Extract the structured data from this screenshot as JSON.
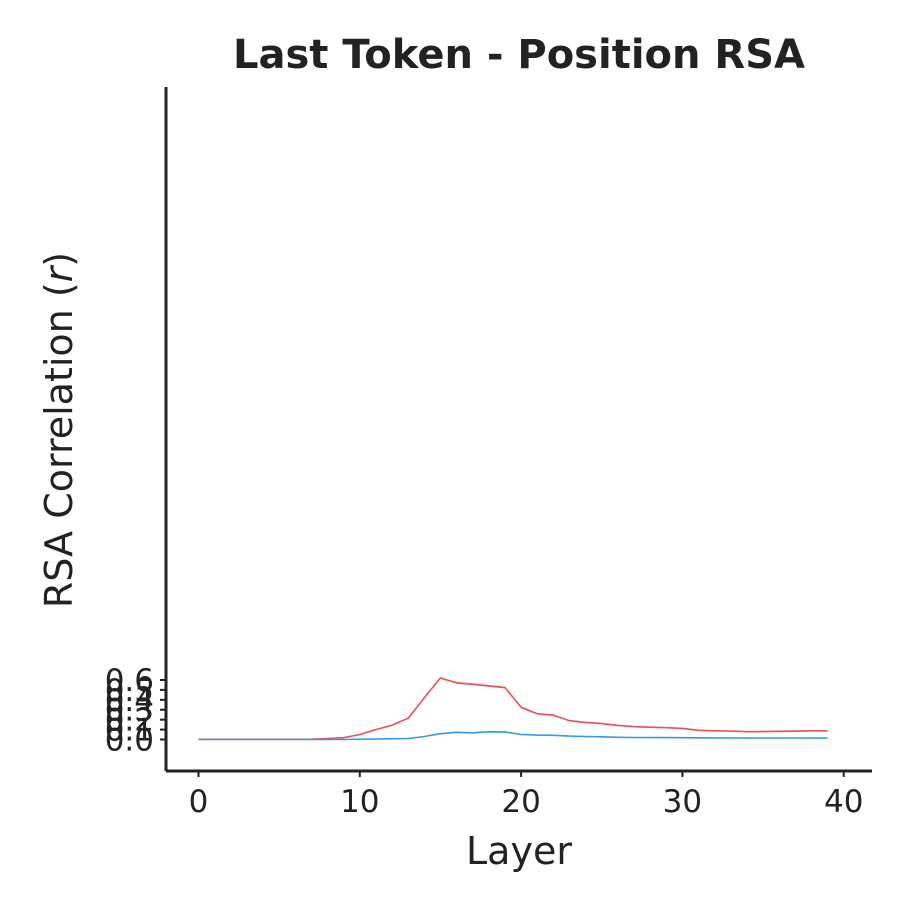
{
  "chart_data": {
    "type": "line",
    "title": "Last Token - Position RSA",
    "xlabel": "Layer",
    "ylabel_main": "RSA Correlation (",
    "ylabel_var": "r",
    "ylabel_end": ")",
    "xlim": [
      -2,
      41
    ],
    "ylim": [
      -0.03,
      0.66
    ],
    "x_ticks": [
      0,
      10,
      20,
      30,
      40
    ],
    "x_tick_labels": [
      "0",
      "10",
      "20",
      "30",
      "40"
    ],
    "y_ticks": [
      0.0,
      0.1,
      0.2,
      0.3,
      0.4,
      0.5,
      0.6
    ],
    "y_tick_labels": [
      "0.0",
      "0.1",
      "0.2",
      "0.3",
      "0.4",
      "0.5",
      "0.6"
    ],
    "grid": false,
    "legend": "none",
    "series": [
      {
        "color": "#e8505b",
        "band_color": "#f4b6bb",
        "x": [
          0,
          1,
          2,
          3,
          4,
          5,
          6,
          7,
          8,
          9,
          10,
          11,
          12,
          13,
          14,
          15,
          16,
          17,
          18,
          19,
          20,
          21,
          22,
          23,
          24,
          25,
          26,
          27,
          28,
          29,
          30,
          31,
          32,
          33,
          34,
          35,
          36,
          37,
          38,
          39
        ],
        "y": [
          0.002,
          0.002,
          0.002,
          0.002,
          0.002,
          0.002,
          0.002,
          0.003,
          0.01,
          0.018,
          0.05,
          0.1,
          0.145,
          0.215,
          0.42,
          0.62,
          0.572,
          0.557,
          0.54,
          0.523,
          0.325,
          0.26,
          0.245,
          0.19,
          0.172,
          0.16,
          0.142,
          0.13,
          0.124,
          0.119,
          0.112,
          0.093,
          0.088,
          0.086,
          0.079,
          0.08,
          0.083,
          0.085,
          0.088,
          0.088
        ],
        "err": [
          0.003,
          0.003,
          0.003,
          0.003,
          0.003,
          0.003,
          0.003,
          0.004,
          0.005,
          0.006,
          0.006,
          0.007,
          0.007,
          0.007,
          0.008,
          0.01,
          0.01,
          0.01,
          0.01,
          0.01,
          0.009,
          0.008,
          0.008,
          0.007,
          0.007,
          0.007,
          0.007,
          0.007,
          0.007,
          0.007,
          0.007,
          0.007,
          0.007,
          0.007,
          0.007,
          0.007,
          0.007,
          0.007,
          0.007,
          0.007
        ]
      },
      {
        "color": "#3399ee",
        "band_color": "#b3d9f5",
        "x": [
          0,
          1,
          2,
          3,
          4,
          5,
          6,
          7,
          8,
          9,
          10,
          11,
          12,
          13,
          14,
          15,
          16,
          17,
          18,
          19,
          20,
          21,
          22,
          23,
          24,
          25,
          26,
          27,
          28,
          29,
          30,
          31,
          32,
          33,
          34,
          35,
          36,
          37,
          38,
          39
        ],
        "y": [
          0.0,
          0.0,
          0.0,
          0.0,
          0.0,
          0.0,
          0.0,
          0.0,
          0.0,
          0.0,
          0.003,
          0.005,
          0.008,
          0.01,
          0.03,
          0.058,
          0.073,
          0.068,
          0.078,
          0.077,
          0.05,
          0.044,
          0.042,
          0.034,
          0.03,
          0.027,
          0.022,
          0.02,
          0.019,
          0.019,
          0.018,
          0.017,
          0.016,
          0.016,
          0.015,
          0.015,
          0.015,
          0.015,
          0.015,
          0.014
        ],
        "err": [
          0.002,
          0.002,
          0.002,
          0.002,
          0.002,
          0.002,
          0.002,
          0.002,
          0.002,
          0.002,
          0.003,
          0.003,
          0.003,
          0.003,
          0.004,
          0.005,
          0.005,
          0.005,
          0.005,
          0.005,
          0.005,
          0.004,
          0.004,
          0.004,
          0.004,
          0.004,
          0.004,
          0.003,
          0.003,
          0.003,
          0.003,
          0.003,
          0.003,
          0.003,
          0.003,
          0.003,
          0.003,
          0.003,
          0.003,
          0.003
        ]
      }
    ]
  }
}
